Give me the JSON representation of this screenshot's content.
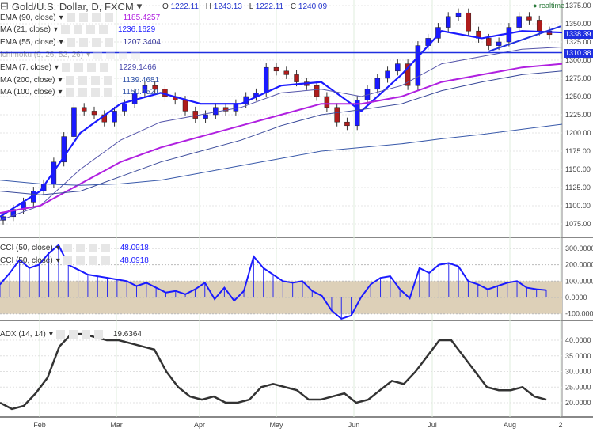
{
  "header": {
    "title": "Gold/U.S. Dollar, D, FXCM",
    "open_label": "O",
    "open": "1222.11",
    "high_label": "H",
    "high": "1243.13",
    "low_label": "L",
    "low": "1222.11",
    "close_label": "C",
    "close": "1240.09",
    "realtime": "realtime"
  },
  "indicators": [
    {
      "label": "EMA (90, close)",
      "value": "1185.4257",
      "color": "#b020e0"
    },
    {
      "label": "MA (21, close)",
      "value": "1236.1629",
      "color": "#1a1aff"
    },
    {
      "label": "EMA (55, close)",
      "value": "1207.3404",
      "color": "#333399"
    },
    {
      "label": "Ichimoku (9, 26, 52, 26)",
      "value": "",
      "color": "#999"
    },
    {
      "label": "EMA (7, close)",
      "value": "1229.1466",
      "color": "#4444aa"
    },
    {
      "label": "MA (200, close)",
      "value": "1139.4681",
      "color": "#3355aa"
    },
    {
      "label": "MA (100, close)",
      "value": "1150.4521",
      "color": "#3355aa"
    }
  ],
  "price_tags": {
    "last": "1338.39",
    "hline": "1310.38"
  },
  "cci_legend": [
    {
      "label": "CCI (50, close)",
      "value": "48.0918"
    },
    {
      "label": "CCI (50, close)",
      "value": "48.0918"
    }
  ],
  "adx_legend": {
    "label": "ADX (14, 14)",
    "value": "19.6364"
  },
  "colors": {
    "up": "#1a1aff",
    "down": "#b01c1c",
    "band": "#ddd0b8"
  },
  "chart_data": [
    {
      "type": "candlestick",
      "title": "Gold/U.S. Dollar, D, FXCM",
      "ylim": [
        1062,
        1385
      ],
      "yticks": [
        1075,
        1100,
        1125,
        1150,
        1175,
        1200,
        1225,
        1250,
        1275,
        1300,
        1325,
        1350,
        1375
      ],
      "xticks": [
        "Feb",
        "Mar",
        "Apr",
        "May",
        "Jun",
        "Jul",
        "Aug",
        "2"
      ],
      "closes": [
        1085,
        1095,
        1105,
        1120,
        1130,
        1160,
        1195,
        1235,
        1230,
        1225,
        1215,
        1230,
        1240,
        1255,
        1265,
        1260,
        1250,
        1245,
        1230,
        1220,
        1225,
        1235,
        1230,
        1240,
        1250,
        1255,
        1290,
        1285,
        1280,
        1270,
        1265,
        1250,
        1235,
        1215,
        1210,
        1245,
        1260,
        1275,
        1285,
        1295,
        1265,
        1320,
        1330,
        1345,
        1360,
        1365,
        1340,
        1330,
        1320,
        1325,
        1345,
        1360,
        1355,
        1340,
        1335
      ],
      "hline": 1310.38,
      "trendline": [
        [
          48,
          1312
        ],
        [
          54,
          1341
        ]
      ],
      "series": [
        {
          "name": "MA (21, close)",
          "values": [
            1085,
            1120,
            1200,
            1240,
            1255,
            1240,
            1240,
            1265,
            1270,
            1230,
            1280,
            1340,
            1330,
            1340,
            1338
          ]
        },
        {
          "name": "EMA (55, close)",
          "values": [
            1080,
            1100,
            1150,
            1190,
            1215,
            1225,
            1235,
            1255,
            1260,
            1250,
            1265,
            1295,
            1305,
            1315,
            1318
          ]
        },
        {
          "name": "EMA (90, close)",
          "values": [
            1090,
            1100,
            1130,
            1160,
            1180,
            1195,
            1210,
            1225,
            1240,
            1240,
            1250,
            1270,
            1280,
            1290,
            1295
          ]
        },
        {
          "name": "MA (100, close)",
          "values": [
            1120,
            1115,
            1120,
            1140,
            1160,
            1175,
            1190,
            1210,
            1225,
            1232,
            1240,
            1258,
            1270,
            1280,
            1285
          ]
        },
        {
          "name": "MA (200, close)",
          "values": [
            1135,
            1130,
            1128,
            1130,
            1135,
            1145,
            1155,
            1165,
            1175,
            1180,
            1185,
            1192,
            1198,
            1205,
            1212
          ]
        }
      ]
    },
    {
      "type": "line",
      "title": "CCI (50, close)",
      "ylim": [
        -150,
        330
      ],
      "yticks": [
        "300.0000",
        "200.0000",
        "100.0000",
        "0.0000",
        "-100.0000"
      ],
      "band": [
        -100,
        100
      ],
      "values": [
        80,
        150,
        230,
        180,
        200,
        270,
        320,
        200,
        170,
        140,
        130,
        120,
        110,
        100,
        70,
        90,
        60,
        30,
        40,
        20,
        50,
        90,
        -10,
        60,
        -20,
        40,
        250,
        180,
        140,
        100,
        90,
        100,
        40,
        10,
        -80,
        -130,
        -110,
        0,
        80,
        120,
        130,
        50,
        -5,
        180,
        150,
        200,
        210,
        190,
        100,
        80,
        50,
        70,
        90,
        100,
        60,
        50,
        45
      ]
    },
    {
      "type": "line",
      "title": "ADX (14, 14)",
      "ylim": [
        16,
        44
      ],
      "yticks": [
        "40.0000",
        "35.0000",
        "30.0000",
        "25.0000",
        "20.0000"
      ],
      "values": [
        20,
        18,
        19,
        23,
        28,
        38,
        42,
        42,
        41,
        40,
        40,
        39,
        38,
        37,
        30,
        25,
        22,
        21,
        22,
        20,
        20,
        21,
        25,
        26,
        25,
        24,
        21,
        21,
        22,
        23,
        20,
        21,
        24,
        27,
        26,
        30,
        35,
        40,
        40,
        35,
        30,
        25,
        24,
        24,
        25,
        22,
        21
      ]
    }
  ]
}
